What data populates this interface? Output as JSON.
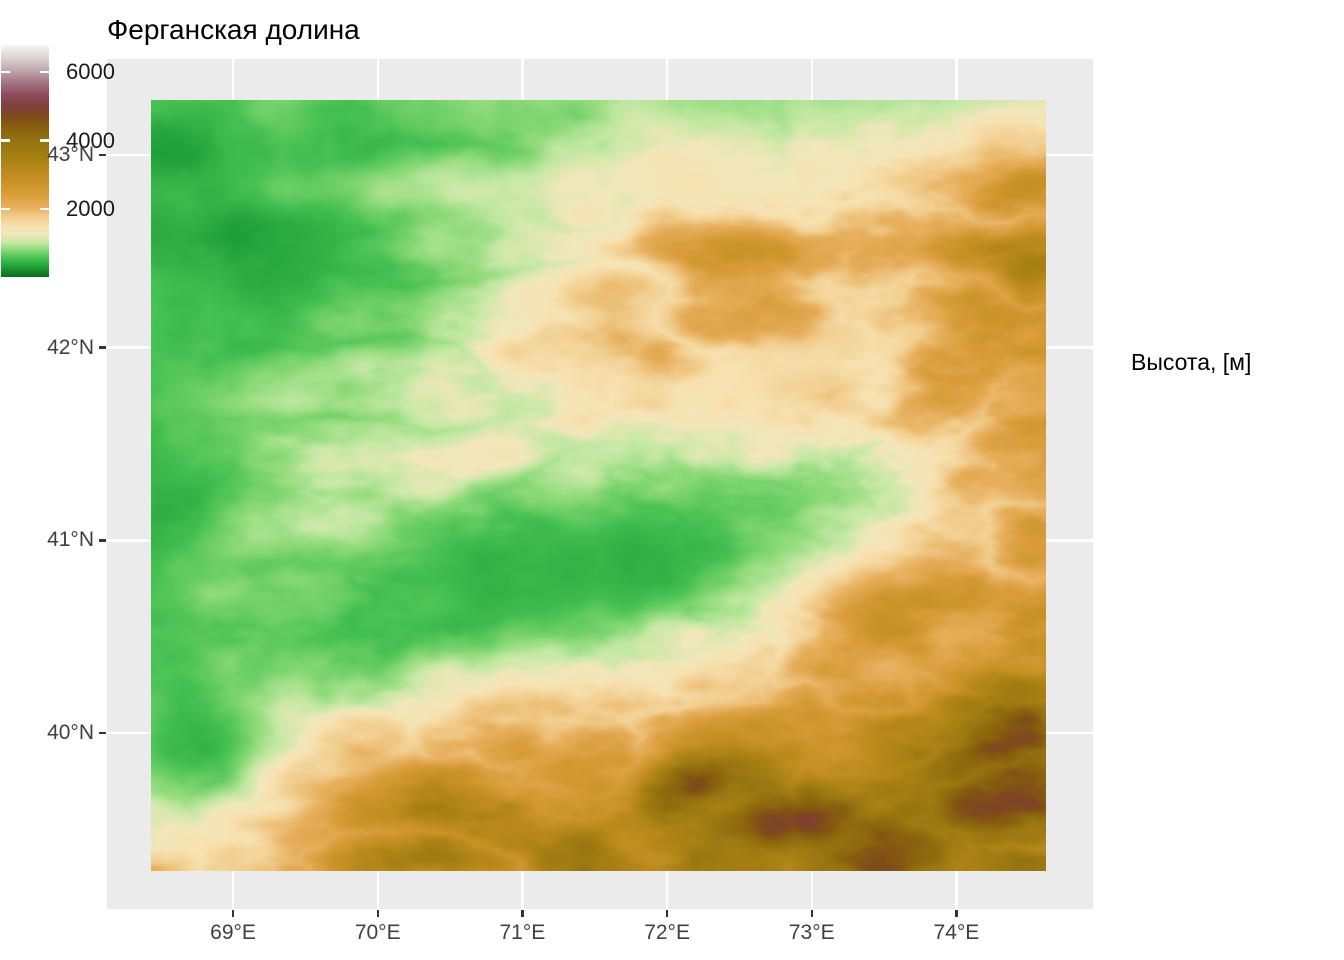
{
  "title": "Ферганская долина",
  "axes": {
    "x": {
      "ticks": [
        {
          "value": 69,
          "label": "69°E"
        },
        {
          "value": 70,
          "label": "70°E"
        },
        {
          "value": 71,
          "label": "71°E"
        },
        {
          "value": 72,
          "label": "72°E"
        },
        {
          "value": 73,
          "label": "73°E"
        },
        {
          "value": 74,
          "label": "74°E"
        }
      ]
    },
    "y": {
      "ticks": [
        {
          "value": 43,
          "label": "43°N"
        },
        {
          "value": 42,
          "label": "42°N"
        },
        {
          "value": 41,
          "label": "41°N"
        },
        {
          "value": 40,
          "label": "40°N"
        }
      ]
    }
  },
  "legend": {
    "title": "Высота, [м]",
    "vmin": 0,
    "vmax": 6800,
    "ticks": [
      {
        "value": 6000,
        "label": "6000"
      },
      {
        "value": 4000,
        "label": "4000"
      },
      {
        "value": 2000,
        "label": "2000"
      }
    ]
  },
  "colors": {
    "panel_bg": "#EBEBEB",
    "gridline": "#FFFFFF",
    "axis_tick": "#333333",
    "axis_text": "#404040",
    "title_text": "#000000",
    "legend_text": "#1a1a1a"
  },
  "chart_data": {
    "type": "heatmap",
    "subtype": "elevation-raster-map",
    "title": "Ферганская долина",
    "legend_title": "Высота, [м]",
    "units": "m",
    "extent": {
      "lon": [
        68.433,
        74.619
      ],
      "lat": [
        39.285,
        43.285
      ]
    },
    "grid": "on",
    "legend_position": "right",
    "value_range": [
      0,
      6800
    ],
    "palette_stops": [
      [
        0,
        "#0A6B1B"
      ],
      [
        300,
        "#21A13A"
      ],
      [
        550,
        "#45C052"
      ],
      [
        800,
        "#8CDA78"
      ],
      [
        1000,
        "#C2E8A2"
      ],
      [
        1250,
        "#F2E7BC"
      ],
      [
        1450,
        "#F7E3B2"
      ],
      [
        1750,
        "#F2CE8F"
      ],
      [
        2050,
        "#E7AF5C"
      ],
      [
        2450,
        "#D89C38"
      ],
      [
        2950,
        "#C28E21"
      ],
      [
        3450,
        "#A98114"
      ],
      [
        3950,
        "#957410"
      ],
      [
        4350,
        "#8A620D"
      ],
      [
        4700,
        "#7F4B1A"
      ],
      [
        5000,
        "#7F3F39"
      ],
      [
        5350,
        "#8C4C5C"
      ],
      [
        5700,
        "#A37585"
      ],
      [
        6050,
        "#BFA6AB"
      ],
      [
        6450,
        "#DCD4D5"
      ],
      [
        6800,
        "#F7F5F4"
      ]
    ],
    "terrain_base_elevation": 2550,
    "terrain_features": [
      {
        "name": "nw-lowland",
        "kind": "low",
        "cx": 0.04,
        "cy": 0.1,
        "sx": 0.38,
        "sy": 0.38,
        "rot": 0,
        "target": 260,
        "w": 1.0,
        "tex": 260
      },
      {
        "name": "west-edge-lowland",
        "kind": "low",
        "cx": -0.03,
        "cy": 0.5,
        "sx": 0.11,
        "sy": 0.34,
        "rot": 0,
        "target": 420,
        "w": 0.95,
        "tex": 280
      },
      {
        "name": "fergana-basin",
        "kind": "low",
        "cx": 0.46,
        "cy": 0.615,
        "sx": 0.295,
        "sy": 0.105,
        "rot": 13,
        "target": 370,
        "w": 1.0,
        "tex": 220
      },
      {
        "name": "north-green-band",
        "kind": "low",
        "cx": 0.78,
        "cy": -0.03,
        "sx": 0.52,
        "sy": 0.075,
        "rot": 0,
        "target": 750,
        "w": 0.95,
        "tex": 350
      },
      {
        "name": "sw-green-wedge",
        "kind": "low",
        "cx": 0.06,
        "cy": 0.83,
        "sx": 0.1,
        "sy": 0.09,
        "rot": 0,
        "target": 520,
        "w": 0.85,
        "tex": 300
      },
      {
        "name": "small-valley-a",
        "kind": "low",
        "cx": 0.645,
        "cy": 0.375,
        "sx": 0.05,
        "sy": 0.028,
        "rot": 10,
        "target": 1350,
        "w": 0.9,
        "tex": 250
      },
      {
        "name": "small-valley-b",
        "kind": "low",
        "cx": 0.75,
        "cy": 0.33,
        "sx": 0.06,
        "sy": 0.026,
        "rot": 18,
        "target": 1500,
        "w": 0.9,
        "tex": 250
      },
      {
        "name": "north-valley-strip",
        "kind": "low",
        "cx": 0.5,
        "cy": 0.105,
        "sx": 0.24,
        "sy": 0.024,
        "rot": 2,
        "target": 1250,
        "w": 0.85,
        "tex": 300
      },
      {
        "name": "alay-range",
        "kind": "high",
        "cx": 0.6,
        "cy": 0.96,
        "sx": 0.42,
        "sy": 0.105,
        "rot": 0,
        "amp": 1500
      },
      {
        "name": "southeast-high",
        "kind": "high",
        "cx": 0.9,
        "cy": 0.88,
        "sx": 0.18,
        "sy": 0.12,
        "rot": 0,
        "amp": 900
      },
      {
        "name": "east-range",
        "kind": "high",
        "cx": 1.02,
        "cy": 0.45,
        "sx": 0.13,
        "sy": 0.3,
        "rot": 0,
        "amp": 800
      },
      {
        "name": "central-ridge",
        "kind": "high",
        "cx": 0.46,
        "cy": 0.29,
        "sx": 0.3,
        "sy": 0.11,
        "rot": 12,
        "amp": 550
      },
      {
        "name": "peak-cluster-1",
        "kind": "high",
        "cx": 0.715,
        "cy": 0.935,
        "sx": 0.04,
        "sy": 0.024,
        "rot": 0,
        "amp": 1500
      },
      {
        "name": "peak-cluster-2",
        "kind": "high",
        "cx": 0.6,
        "cy": 0.88,
        "sx": 0.03,
        "sy": 0.02,
        "rot": 0,
        "amp": 1200
      },
      {
        "name": "peak-cluster-3",
        "kind": "high",
        "cx": 0.965,
        "cy": 0.82,
        "sx": 0.045,
        "sy": 0.05,
        "rot": 0,
        "amp": 1000
      }
    ]
  }
}
